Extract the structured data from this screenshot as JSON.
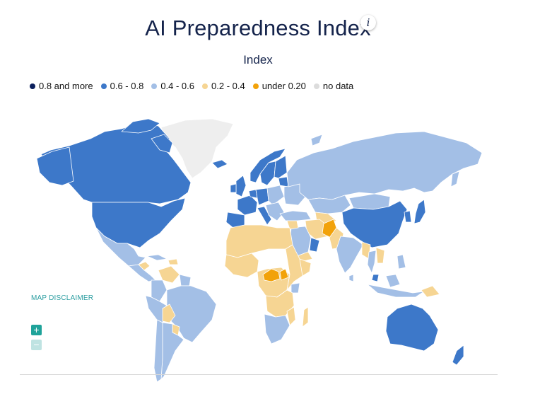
{
  "header": {
    "title": "AI Preparedness Index",
    "info_icon": "i",
    "subtitle": "Index"
  },
  "legend": {
    "items": [
      {
        "label": "0.8 and more",
        "color": "#0b1f5c"
      },
      {
        "label": "0.6 - 0.8",
        "color": "#3d78c9"
      },
      {
        "label": "0.4 - 0.6",
        "color": "#a3bfe6"
      },
      {
        "label": "0.2 - 0.4",
        "color": "#f6d593"
      },
      {
        "label": "under 0.20",
        "color": "#f2a20a"
      },
      {
        "label": "no data",
        "color": "#dcdcdc"
      }
    ]
  },
  "map": {
    "disclaimer": "MAP DISCLAIMER",
    "zoom_in_symbol": "+",
    "zoom_out_symbol": "−",
    "colors": {
      "no_data": "#eeeeee",
      "high": "#3d78c9",
      "mid": "#a3bfe6",
      "low": "#f6d593",
      "lowest": "#f2a20a",
      "border": "#ffffff"
    }
  }
}
